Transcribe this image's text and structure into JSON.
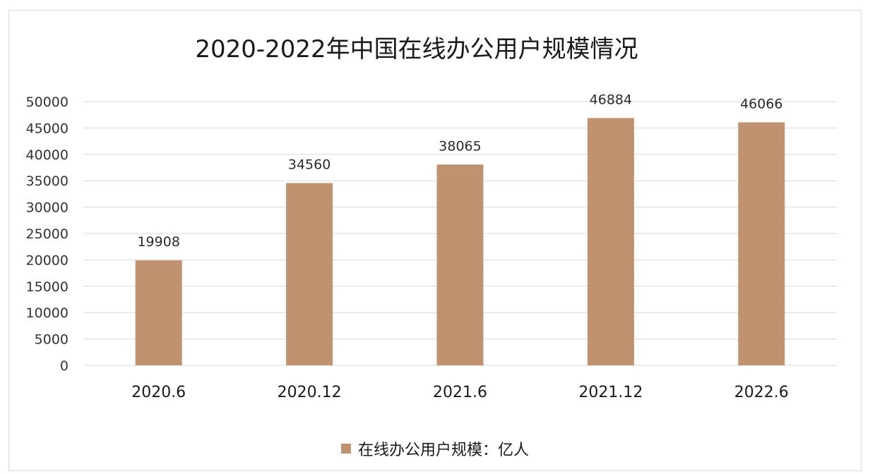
{
  "chart_data": {
    "type": "bar",
    "title": "2020-2022年中国在线办公用户规模情况",
    "categories": [
      "2020.6",
      "2020.12",
      "2021.6",
      "2021.12",
      "2022.6"
    ],
    "series": [
      {
        "name": "在线办公用户规模：亿人",
        "values": [
          19908,
          34560,
          38065,
          46884,
          46066
        ],
        "data_labels": [
          "19908",
          "34560",
          "38065",
          "46884",
          "46066"
        ]
      }
    ],
    "yticks": [
      "0",
      "5000",
      "10000",
      "15000",
      "20000",
      "25000",
      "30000",
      "35000",
      "40000",
      "45000",
      "50000"
    ],
    "ylim": [
      0,
      50000
    ],
    "grid": true,
    "legend_position": "bottom",
    "bar_color": "#c09270",
    "grid_color": "#d9d9d9"
  }
}
